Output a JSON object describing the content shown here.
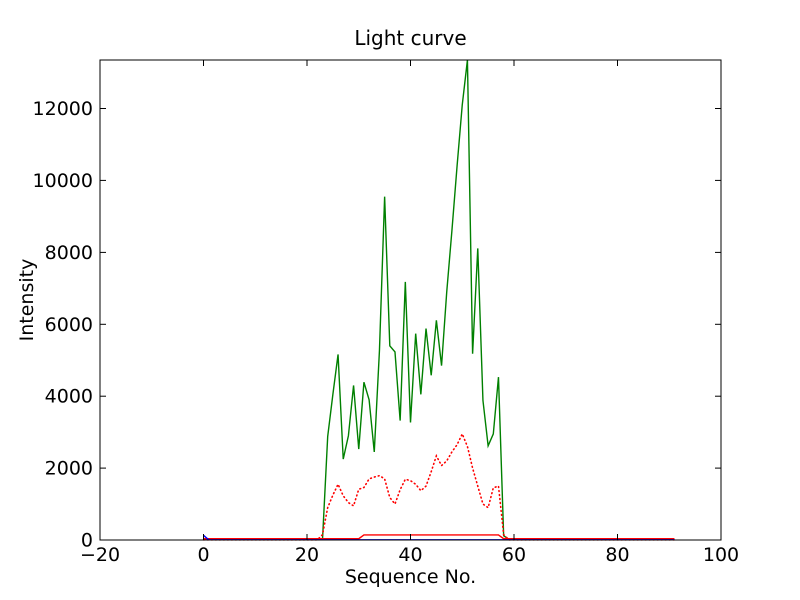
{
  "figure": {
    "background": "#ffffff",
    "frame_color": "#000000"
  },
  "chart_data": {
    "type": "line",
    "title": "Light curve",
    "xlabel": "Sequence No.",
    "ylabel": "Intensity",
    "xlim": [
      -20,
      100
    ],
    "ylim": [
      0,
      13350
    ],
    "xticks": [
      -20,
      0,
      20,
      40,
      60,
      80,
      100
    ],
    "yticks": [
      0,
      2000,
      4000,
      6000,
      8000,
      10000,
      12000
    ],
    "grid": false,
    "legend": "none",
    "tick_direction": "in",
    "series": [
      {
        "name": "intensity-green-solid",
        "color": "#008000",
        "style": "solid",
        "points": [
          [
            0,
            20
          ],
          [
            23,
            20
          ],
          [
            24,
            2880
          ],
          [
            25,
            4050
          ],
          [
            26,
            5160
          ],
          [
            27,
            2250
          ],
          [
            28,
            2900
          ],
          [
            29,
            4300
          ],
          [
            30,
            2530
          ],
          [
            31,
            4390
          ],
          [
            32,
            3900
          ],
          [
            33,
            2450
          ],
          [
            34,
            5270
          ],
          [
            35,
            9550
          ],
          [
            36,
            5400
          ],
          [
            37,
            5230
          ],
          [
            38,
            3320
          ],
          [
            39,
            7180
          ],
          [
            40,
            3270
          ],
          [
            41,
            5740
          ],
          [
            42,
            4050
          ],
          [
            43,
            5880
          ],
          [
            44,
            4580
          ],
          [
            45,
            6110
          ],
          [
            46,
            4850
          ],
          [
            47,
            6900
          ],
          [
            48,
            8600
          ],
          [
            49,
            10400
          ],
          [
            50,
            12100
          ],
          [
            51,
            13350
          ],
          [
            52,
            5180
          ],
          [
            53,
            8110
          ],
          [
            54,
            3880
          ],
          [
            55,
            2620
          ],
          [
            56,
            2950
          ],
          [
            57,
            4530
          ],
          [
            58,
            120
          ],
          [
            59,
            20
          ],
          [
            91,
            20
          ]
        ]
      },
      {
        "name": "intensity-red-dotted",
        "color": "#ff0000",
        "style": "dotted",
        "points": [
          [
            0,
            5
          ],
          [
            22,
            5
          ],
          [
            23,
            150
          ],
          [
            24,
            900
          ],
          [
            25,
            1250
          ],
          [
            26,
            1550
          ],
          [
            27,
            1230
          ],
          [
            28,
            1040
          ],
          [
            29,
            950
          ],
          [
            30,
            1410
          ],
          [
            31,
            1460
          ],
          [
            32,
            1700
          ],
          [
            33,
            1750
          ],
          [
            34,
            1790
          ],
          [
            35,
            1700
          ],
          [
            36,
            1180
          ],
          [
            37,
            1000
          ],
          [
            38,
            1400
          ],
          [
            39,
            1690
          ],
          [
            40,
            1650
          ],
          [
            41,
            1550
          ],
          [
            42,
            1370
          ],
          [
            43,
            1500
          ],
          [
            44,
            1900
          ],
          [
            45,
            2340
          ],
          [
            46,
            2070
          ],
          [
            47,
            2200
          ],
          [
            48,
            2450
          ],
          [
            49,
            2650
          ],
          [
            50,
            2950
          ],
          [
            51,
            2600
          ],
          [
            52,
            2000
          ],
          [
            53,
            1500
          ],
          [
            54,
            1000
          ],
          [
            55,
            900
          ],
          [
            56,
            1450
          ],
          [
            57,
            1500
          ],
          [
            58,
            150
          ],
          [
            59,
            5
          ],
          [
            91,
            5
          ]
        ]
      },
      {
        "name": "baseline-red-solid",
        "color": "#ff0000",
        "style": "solid",
        "points": [
          [
            0,
            35
          ],
          [
            30,
            35
          ],
          [
            31,
            140
          ],
          [
            57,
            140
          ],
          [
            58,
            35
          ],
          [
            91,
            35
          ]
        ]
      },
      {
        "name": "marker-blue",
        "color": "#0000ff",
        "style": "solid",
        "points": [
          [
            0,
            130
          ],
          [
            1,
            5
          ],
          [
            91,
            5
          ]
        ]
      }
    ]
  }
}
